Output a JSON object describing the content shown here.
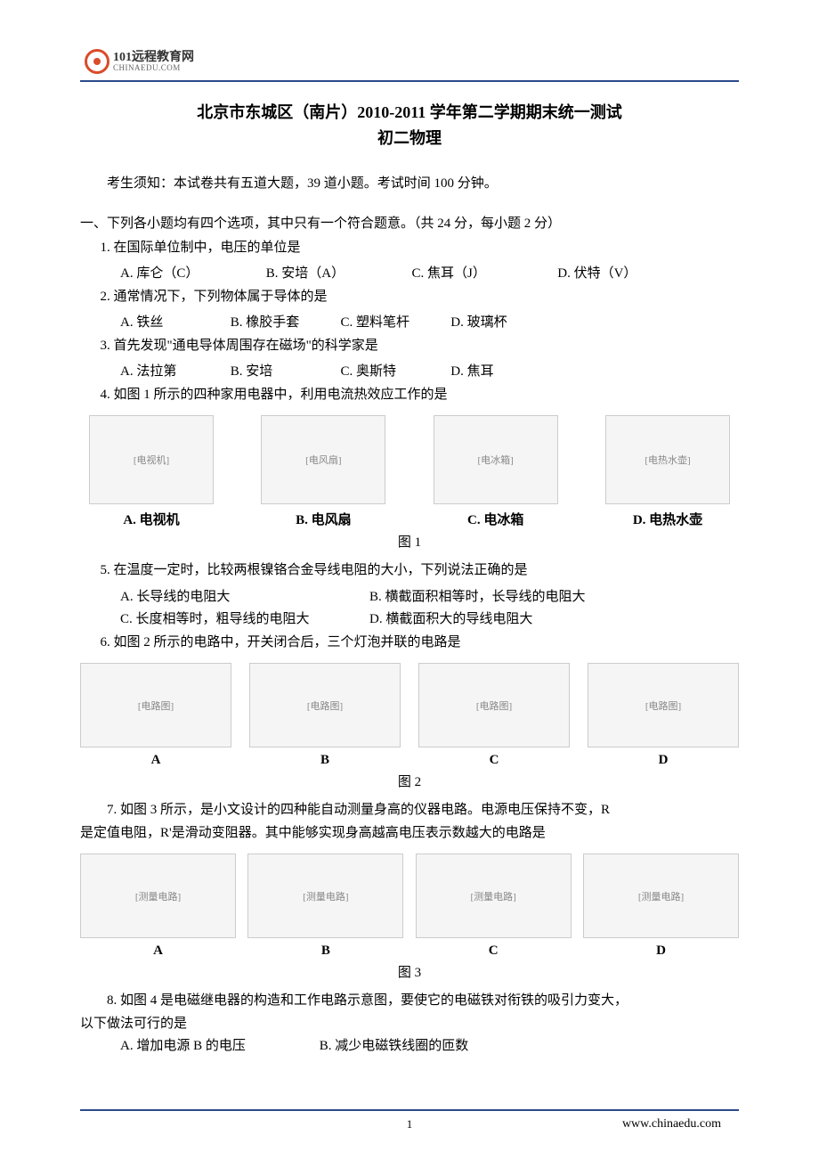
{
  "logo": {
    "cn": "101远程教育网",
    "en": "CHINAEDU.COM"
  },
  "title": {
    "line1": "北京市东城区（南片）2010-2011 学年第二学期期末统一测试",
    "line2": "初二物理"
  },
  "instructions": "考生须知：本试卷共有五道大题，39 道小题。考试时间 100 分钟。",
  "section1_header": "一、下列各小题均有四个选项，其中只有一个符合题意。（共 24 分，每小题 2 分）",
  "q1": {
    "text": "1. 在国际单位制中，电压的单位是",
    "a": "A. 库仑（C）",
    "b": "B. 安培（A）",
    "c": "C. 焦耳（J）",
    "d": "D. 伏特（V）"
  },
  "q2": {
    "text": "2. 通常情况下，下列物体属于导体的是",
    "a": "A. 铁丝",
    "b": "B. 橡胶手套",
    "c": "C. 塑料笔杆",
    "d": "D. 玻璃杯"
  },
  "q3": {
    "text": "3. 首先发现\"通电导体周围存在磁场\"的科学家是",
    "a": "A. 法拉第",
    "b": "B. 安培",
    "c": "C. 奥斯特",
    "d": "D. 焦耳"
  },
  "q4": {
    "text": "4. 如图 1 所示的四种家用电器中，利用电流热效应工作的是",
    "a": "A. 电视机",
    "b": "B. 电风扇",
    "c": "C. 电冰箱",
    "d": "D. 电热水壶",
    "caption": "图 1"
  },
  "q5": {
    "text": "5. 在温度一定时，比较两根镍铬合金导线电阻的大小，下列说法正确的是",
    "a": "A. 长导线的电阻大",
    "b": "B. 横截面积相等时，长导线的电阻大",
    "c": "C. 长度相等时，粗导线的电阻大",
    "d": "D. 横截面积大的导线电阻大"
  },
  "q6": {
    "text": "6. 如图 2 所示的电路中，开关闭合后，三个灯泡并联的电路是",
    "a": "A",
    "b": "B",
    "c": "C",
    "d": "D",
    "caption": "图 2"
  },
  "q7": {
    "line1": "7. 如图 3 所示，是小文设计的四种能自动测量身高的仪器电路。电源电压保持不变，R",
    "line2": "是定值电阻，R'是滑动变阻器。其中能够实现身高越高电压表示数越大的电路是",
    "a": "A",
    "b": "B",
    "c": "C",
    "d": "D",
    "caption": "图 3"
  },
  "q8": {
    "line1": "8. 如图 4 是电磁继电器的构造和工作电路示意图，要使它的电磁铁对衔铁的吸引力变大，",
    "line2": "以下做法可行的是",
    "a": "A. 增加电源 B 的电压",
    "b": "B. 减少电磁铁线圈的匝数"
  },
  "figure_placeholders": {
    "tv": "[电视机]",
    "fan": "[电风扇]",
    "fridge": "[电冰箱]",
    "kettle": "[电热水壶]",
    "circuit": "[电路图]",
    "height": "[测量电路]"
  },
  "page_number": "1",
  "url": "www.chinaedu.com"
}
